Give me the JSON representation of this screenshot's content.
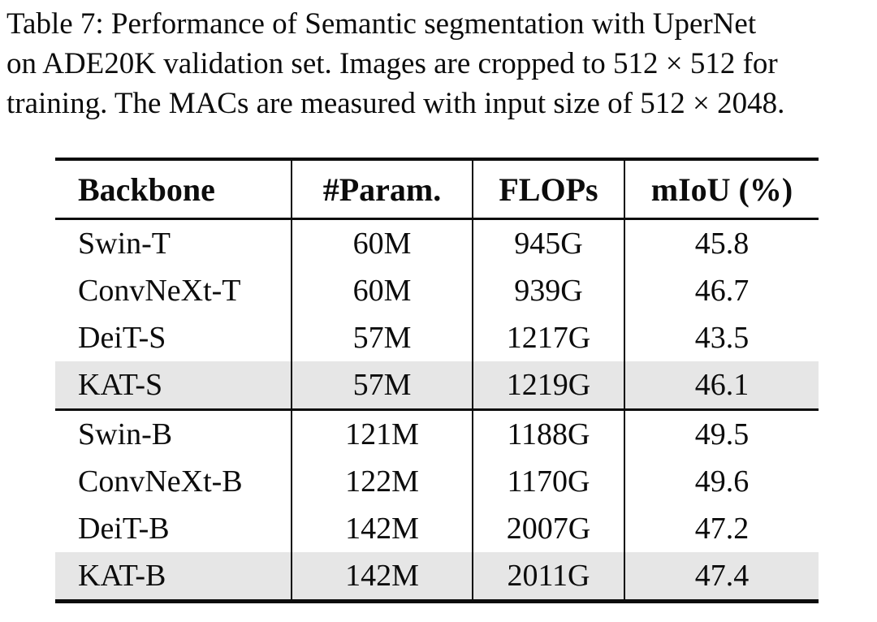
{
  "caption": {
    "lines": [
      "Table 7: Performance of Semantic segmentation with UperNet",
      "on ADE20K validation set. Images are cropped to 512 × 512 for",
      "training. The MACs are measured with input size of 512 × 2048."
    ]
  },
  "table": {
    "columns": [
      "Backbone",
      "#Param.",
      "FLOPs",
      "mIoU (%)"
    ],
    "highlight_color": "#e6e6e6",
    "text_color": "#0c0c0c",
    "groups": [
      {
        "rows": [
          {
            "backbone": "Swin-T",
            "params": "60M",
            "flops": "945G",
            "miou": "45.8",
            "highlighted": false
          },
          {
            "backbone": "ConvNeXt-T",
            "params": "60M",
            "flops": "939G",
            "miou": "46.7",
            "highlighted": false
          },
          {
            "backbone": "DeiT-S",
            "params": "57M",
            "flops": "1217G",
            "miou": "43.5",
            "highlighted": false
          },
          {
            "backbone": "KAT-S",
            "params": "57M",
            "flops": "1219G",
            "miou": "46.1",
            "highlighted": true
          }
        ]
      },
      {
        "rows": [
          {
            "backbone": "Swin-B",
            "params": "121M",
            "flops": "1188G",
            "miou": "49.5",
            "highlighted": false
          },
          {
            "backbone": "ConvNeXt-B",
            "params": "122M",
            "flops": "1170G",
            "miou": "49.6",
            "highlighted": false
          },
          {
            "backbone": "DeiT-B",
            "params": "142M",
            "flops": "2007G",
            "miou": "47.2",
            "highlighted": false
          },
          {
            "backbone": "KAT-B",
            "params": "142M",
            "flops": "2011G",
            "miou": "47.4",
            "highlighted": true
          }
        ]
      }
    ]
  }
}
